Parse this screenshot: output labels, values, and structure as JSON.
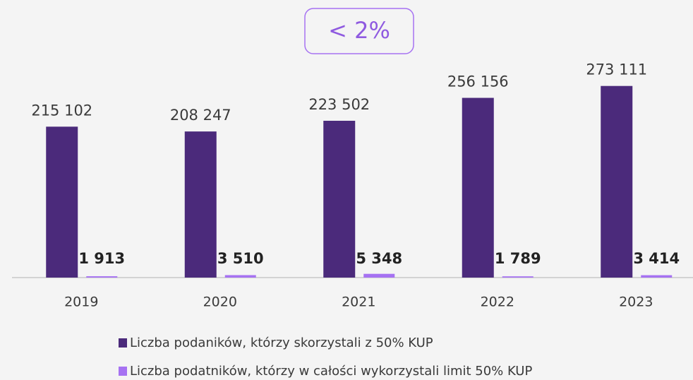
{
  "chart_data": {
    "type": "bar",
    "annotation": "< 2%",
    "categories": [
      "2019",
      "2020",
      "2021",
      "2022",
      "2023"
    ],
    "series": [
      {
        "name": "Liczba podaników, którzy skorzystali z 50% KUP",
        "color": "#4b2a7b",
        "values": [
          215102,
          208247,
          223502,
          256156,
          273111
        ],
        "value_labels": [
          "215 102",
          "208 247",
          "223 502",
          "256 156",
          "273 111"
        ]
      },
      {
        "name": "Liczba podatników, którzy w całości wykorzystali limit 50% KUP",
        "color": "#a672f2",
        "values": [
          1913,
          3510,
          5348,
          1789,
          3414
        ],
        "value_labels": [
          "1 913",
          "3 510",
          "5 348",
          "1 789",
          "3 414"
        ]
      }
    ],
    "ylim": [
      0,
      300000
    ]
  }
}
